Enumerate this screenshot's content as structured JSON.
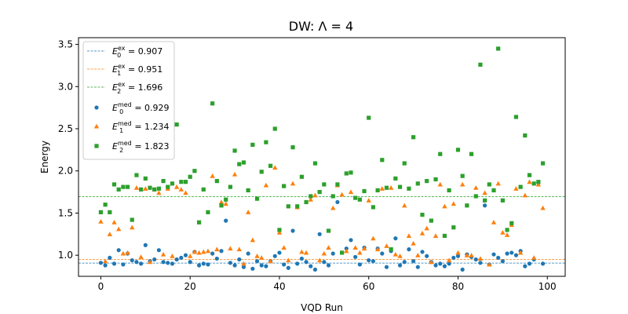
{
  "chart_data": {
    "type": "scatter",
    "title": "DW: Λ = 4",
    "xlabel": "VQD Run",
    "ylabel": "Energy",
    "xlim": [
      -5,
      104
    ],
    "ylim": [
      0.75,
      3.58
    ],
    "xticks": [
      0,
      20,
      40,
      60,
      80,
      100
    ],
    "yticks": [
      1.0,
      1.5,
      2.0,
      2.5,
      3.0,
      3.5
    ],
    "legend_position": "top-left",
    "hlines": [
      {
        "label": "E_0^ex = 0.907",
        "legend_main": "E",
        "legend_sub": "0",
        "legend_sup": "ex",
        "legend_value": "= 0.907",
        "y": 0.907,
        "color": "#1f77b4"
      },
      {
        "label": "E_1^ex = 0.951",
        "legend_main": "E",
        "legend_sub": "1",
        "legend_sup": "ex",
        "legend_value": "= 0.951",
        "y": 0.951,
        "color": "#ff7f0e"
      },
      {
        "label": "E_2^ex = 1.696",
        "legend_main": "E",
        "legend_sub": "2",
        "legend_sup": "ex",
        "legend_value": "= 1.696",
        "y": 1.696,
        "color": "#2ca02c"
      }
    ],
    "series": [
      {
        "name": "E_0^med = 0.929",
        "legend_main": "E",
        "legend_sub": "0",
        "legend_sup": "med",
        "legend_value": "= 0.929",
        "marker": "circle",
        "color": "#1f77b4",
        "x": [
          0,
          1,
          2,
          3,
          4,
          5,
          6,
          7,
          8,
          9,
          10,
          11,
          12,
          13,
          14,
          15,
          16,
          17,
          18,
          19,
          20,
          21,
          22,
          23,
          24,
          25,
          26,
          27,
          28,
          29,
          30,
          31,
          32,
          33,
          34,
          35,
          36,
          37,
          38,
          39,
          40,
          41,
          42,
          43,
          44,
          45,
          46,
          47,
          48,
          49,
          50,
          51,
          52,
          53,
          54,
          55,
          56,
          57,
          58,
          59,
          60,
          61,
          62,
          63,
          64,
          65,
          66,
          67,
          68,
          69,
          70,
          71,
          72,
          73,
          74,
          75,
          76,
          77,
          78,
          79,
          80,
          81,
          82,
          83,
          84,
          85,
          86,
          87,
          88,
          89,
          90,
          91,
          92,
          93,
          94,
          95,
          96,
          97,
          98,
          99
        ],
        "y": [
          0.91,
          0.88,
          0.97,
          0.9,
          1.06,
          0.89,
          1.02,
          0.94,
          0.92,
          0.9,
          1.12,
          0.93,
          0.95,
          1.06,
          0.92,
          0.91,
          0.9,
          0.95,
          0.97,
          1.0,
          0.92,
          1.04,
          0.88,
          0.9,
          0.89,
          1.02,
          0.96,
          1.05,
          1.41,
          0.91,
          0.88,
          0.95,
          0.86,
          1.02,
          0.84,
          0.93,
          0.88,
          0.87,
          0.93,
          0.99,
          1.03,
          0.89,
          0.85,
          1.29,
          0.9,
          0.96,
          0.92,
          0.87,
          0.83,
          1.25,
          0.92,
          0.88,
          1.02,
          1.63,
          1.03,
          1.08,
          1.18,
          0.98,
          0.89,
          1.09,
          0.94,
          0.93,
          1.08,
          1.02,
          0.86,
          1.05,
          1.2,
          0.88,
          0.92,
          1.07,
          0.93,
          0.86,
          1.04,
          0.99,
          0.92,
          0.88,
          0.9,
          0.87,
          0.9,
          0.97,
          0.99,
          0.83,
          1.01,
          0.98,
          0.95,
          0.91,
          1.59,
          0.89,
          1.01,
          0.97,
          0.93,
          1.02,
          1.03,
          1.0,
          1.05,
          0.87,
          0.9,
          0.95,
          1.86,
          0.9
        ]
      },
      {
        "name": "E_1^med = 1.234",
        "legend_main": "E",
        "legend_sub": "1",
        "legend_sup": "med",
        "legend_value": "= 1.234",
        "marker": "triangle",
        "color": "#ff7f0e",
        "x": [
          0,
          1,
          2,
          3,
          4,
          5,
          6,
          7,
          8,
          9,
          10,
          11,
          12,
          13,
          14,
          15,
          16,
          17,
          18,
          19,
          20,
          21,
          22,
          23,
          24,
          25,
          26,
          27,
          28,
          29,
          30,
          31,
          32,
          33,
          34,
          35,
          36,
          37,
          38,
          39,
          40,
          41,
          42,
          43,
          44,
          45,
          46,
          47,
          48,
          49,
          50,
          51,
          52,
          53,
          54,
          55,
          56,
          57,
          58,
          59,
          60,
          61,
          62,
          63,
          64,
          65,
          66,
          67,
          68,
          69,
          70,
          71,
          72,
          73,
          74,
          75,
          76,
          77,
          78,
          79,
          80,
          81,
          82,
          83,
          84,
          85,
          86,
          87,
          88,
          89,
          90,
          91,
          92,
          93,
          94,
          95,
          96,
          97,
          98,
          99
        ],
        "y": [
          1.4,
          0.93,
          1.25,
          1.39,
          1.31,
          1.02,
          1.03,
          1.33,
          1.8,
          0.98,
          1.79,
          0.92,
          1.78,
          1.74,
          1.01,
          1.79,
          0.99,
          1.81,
          1.78,
          1.74,
          0.99,
          1.04,
          1.03,
          1.04,
          1.05,
          1.94,
          1.07,
          1.63,
          1.61,
          1.08,
          1.96,
          1.07,
          0.9,
          1.51,
          1.18,
          0.99,
          0.97,
          1.83,
          0.93,
          2.04,
          1.27,
          1.09,
          0.94,
          1.85,
          1.57,
          1.04,
          1.03,
          1.66,
          1.71,
          0.94,
          1.02,
          1.09,
          1.56,
          1.83,
          1.72,
          1.05,
          1.75,
          1.09,
          1.03,
          1.08,
          1.65,
          1.2,
          1.07,
          1.79,
          1.11,
          1.8,
          1.01,
          0.99,
          1.59,
          1.23,
          1.14,
          1.0,
          1.26,
          1.32,
          0.92,
          1.23,
          1.84,
          1.58,
          0.94,
          1.61,
          1.03,
          1.84,
          1.0,
          1.0,
          1.8,
          0.96,
          1.74,
          0.89,
          1.39,
          1.85,
          1.27,
          1.24,
          1.36,
          1.79,
          1.03,
          1.71,
          1.87,
          0.97,
          1.84,
          1.56
        ]
      },
      {
        "name": "E_2^med = 1.823",
        "legend_main": "E",
        "legend_sub": "2",
        "legend_sup": "med",
        "legend_value": "= 1.823",
        "marker": "square",
        "color": "#2ca02c",
        "x": [
          0,
          1,
          2,
          3,
          4,
          5,
          6,
          7,
          8,
          9,
          10,
          11,
          12,
          13,
          14,
          15,
          16,
          17,
          18,
          19,
          20,
          21,
          22,
          23,
          24,
          25,
          26,
          27,
          28,
          29,
          30,
          31,
          32,
          33,
          34,
          35,
          36,
          37,
          38,
          39,
          40,
          41,
          42,
          43,
          44,
          45,
          46,
          47,
          48,
          49,
          50,
          51,
          52,
          53,
          54,
          55,
          56,
          57,
          58,
          59,
          60,
          61,
          62,
          63,
          64,
          65,
          66,
          67,
          68,
          69,
          70,
          71,
          72,
          73,
          74,
          75,
          76,
          77,
          78,
          79,
          80,
          81,
          82,
          83,
          84,
          85,
          86,
          87,
          88,
          89,
          90,
          91,
          92,
          93,
          94,
          95,
          96,
          97,
          98,
          99
        ],
        "y": [
          1.51,
          1.6,
          1.51,
          1.84,
          1.78,
          1.81,
          1.81,
          1.42,
          1.95,
          1.78,
          1.91,
          1.8,
          1.78,
          1.79,
          1.88,
          1.81,
          1.85,
          2.55,
          1.87,
          1.87,
          1.93,
          2.0,
          1.39,
          1.78,
          1.51,
          2.8,
          1.88,
          1.59,
          1.66,
          1.81,
          2.24,
          2.08,
          2.1,
          1.77,
          2.31,
          1.67,
          1.99,
          2.34,
          2.06,
          2.5,
          1.3,
          1.82,
          1.58,
          2.28,
          1.58,
          1.93,
          1.63,
          1.7,
          2.09,
          1.75,
          1.84,
          1.29,
          1.7,
          1.84,
          1.03,
          1.97,
          1.98,
          1.68,
          1.66,
          1.76,
          2.63,
          1.57,
          1.77,
          2.13,
          1.8,
          1.07,
          1.91,
          1.81,
          2.09,
          1.79,
          2.4,
          1.85,
          1.48,
          1.88,
          1.41,
          1.9,
          2.2,
          1.23,
          1.77,
          1.33,
          2.25,
          1.94,
          1.59,
          2.2,
          1.7,
          3.26,
          1.65,
          1.84,
          1.77,
          3.45,
          1.65,
          1.3,
          1.38,
          2.64,
          1.81,
          2.42,
          1.95,
          1.85,
          1.87,
          2.09
        ]
      }
    ]
  }
}
